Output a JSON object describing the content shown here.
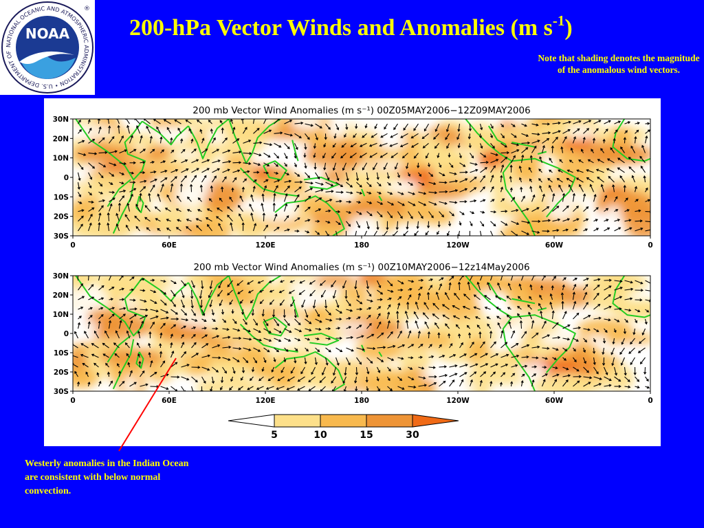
{
  "title": {
    "main": "200-hPa Vector Winds and Anomalies  (m s",
    "superscript": "-1",
    "close": ")"
  },
  "note": "Note that shading denotes the magnitude of the anomalous wind vectors.",
  "logo": {
    "ring_text": "NATIONAL OCEANIC AND ATMOSPHERIC ADMINISTRATION • U.S. DEPARTMENT OF COMMERCE •",
    "center_text": "NOAA",
    "registered": "®"
  },
  "map_panels": [
    {
      "title": "200 mb Vector Wind Anomalies (m s⁻¹) 00Z05MAY2006−12Z09MAY2006",
      "lat_labels": [
        "30N",
        "20N",
        "10N",
        "0",
        "10S",
        "20S",
        "30S"
      ],
      "lon_labels": [
        "0",
        "60E",
        "120E",
        "180",
        "120W",
        "60W",
        "0"
      ]
    },
    {
      "title": "200 mb Vector Wind Anomalies (m s⁻¹) 00Z10MAY2006−12z14May2006",
      "lat_labels": [
        "30N",
        "20N",
        "10N",
        "0",
        "10S",
        "20S",
        "30S"
      ],
      "lon_labels": [
        "0",
        "60E",
        "120E",
        "180",
        "120W",
        "60W",
        "0"
      ]
    }
  ],
  "colorbar": {
    "labels": [
      "5",
      "10",
      "15",
      "30"
    ],
    "colors": [
      "#ffffff",
      "#fde08a",
      "#f8b94e",
      "#ee9436",
      "#f06a16"
    ]
  },
  "annotation": "Westerly anomalies in the Indian Ocean are consistent with below normal convection.",
  "colors": {
    "background": "#0000ff",
    "text": "#ffff00",
    "coast": "#22cc22",
    "arrow_line": "#ff0000"
  }
}
